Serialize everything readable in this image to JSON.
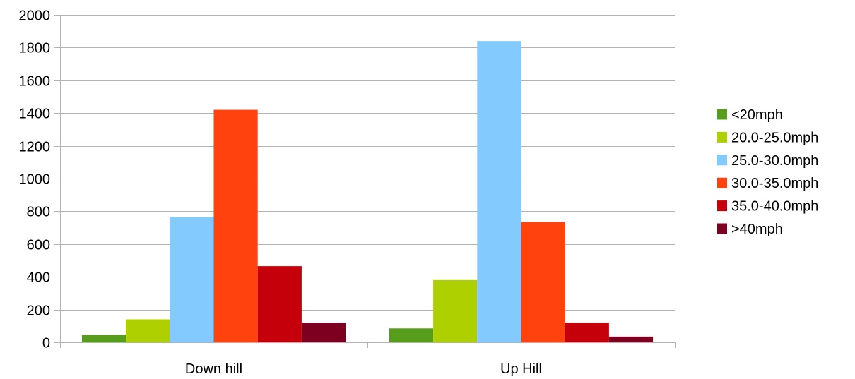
{
  "chart_data": {
    "type": "bar",
    "title": "",
    "xlabel": "",
    "ylabel": "",
    "ylim": [
      0,
      2000
    ],
    "yticks": [
      0,
      200,
      400,
      600,
      800,
      1000,
      1200,
      1400,
      1600,
      1800,
      2000
    ],
    "grid": "horizontal",
    "legend_position": "right",
    "categories": [
      "Down hill",
      "Up Hill"
    ],
    "series": [
      {
        "name": "<20mph",
        "color": "#579d1c",
        "values": [
          45,
          85
        ]
      },
      {
        "name": "20.0-25.0mph",
        "color": "#aecf00",
        "values": [
          140,
          380
        ]
      },
      {
        "name": "25.0-30.0mph",
        "color": "#83caff",
        "values": [
          765,
          1840
        ]
      },
      {
        "name": "30.0-35.0mph",
        "color": "#ff420e",
        "values": [
          1420,
          735
        ]
      },
      {
        "name": "35.0-40.0mph",
        "color": "#c5000b",
        "values": [
          465,
          120
        ]
      },
      {
        "name": ">40mph",
        "color": "#7e0021",
        "values": [
          120,
          35
        ]
      }
    ]
  }
}
